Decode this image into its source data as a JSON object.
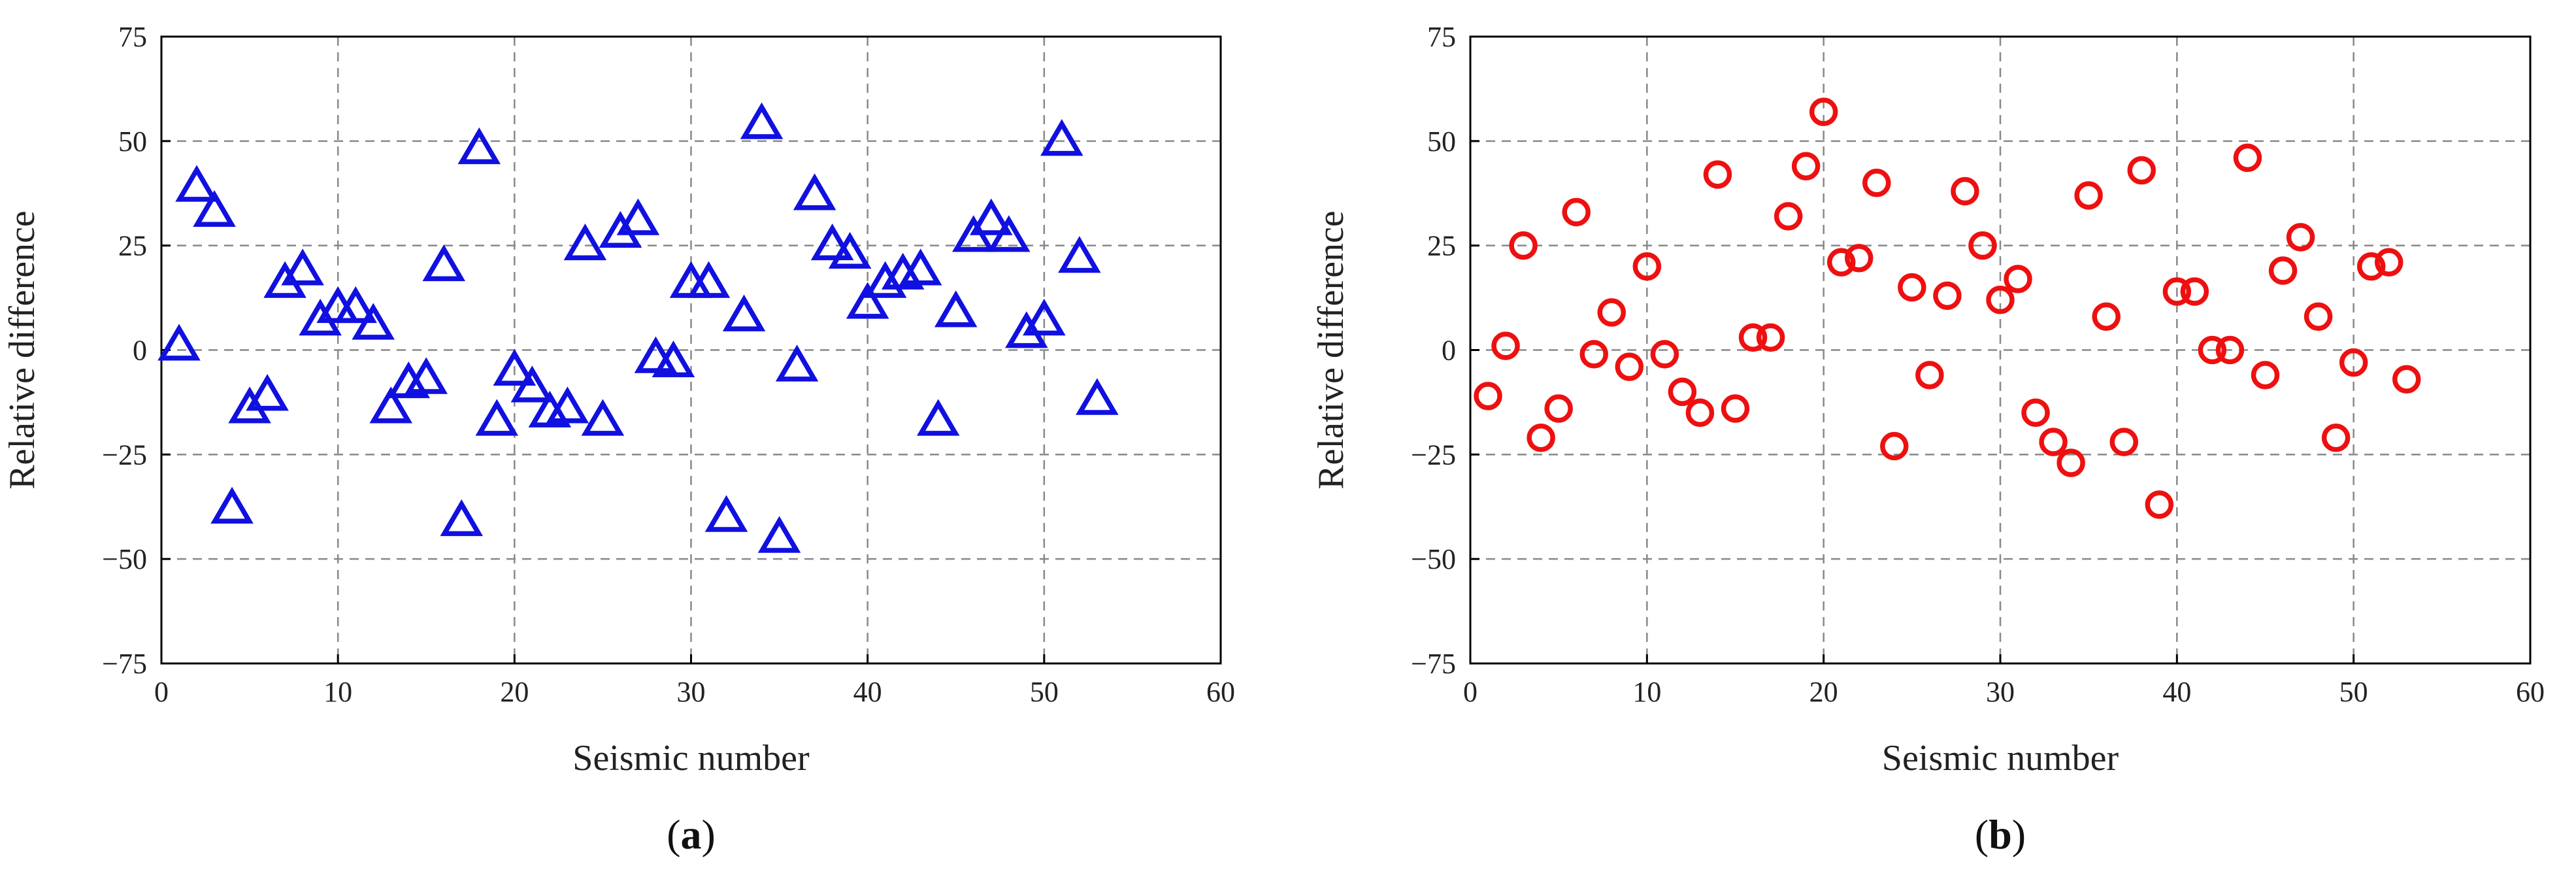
{
  "chart_data": [
    {
      "type": "scatter",
      "panel_label": "a",
      "xlabel": "Seismic number",
      "ylabel": "Relative difference",
      "xlim": [
        0,
        60
      ],
      "ylim": [
        -75,
        75
      ],
      "xticks": [
        0,
        10,
        20,
        30,
        40,
        50,
        60
      ],
      "yticks": [
        75,
        50,
        25,
        0,
        -25,
        -50,
        -75
      ],
      "grid": true,
      "marker": "triangle",
      "color": "#1010e0",
      "series": [
        {
          "x": [
            1,
            2,
            3,
            4,
            5,
            6,
            7,
            8,
            9,
            10,
            11,
            12,
            13,
            14,
            15,
            16,
            17,
            18,
            19,
            20,
            21,
            22,
            23,
            24,
            25,
            26,
            27,
            28,
            29,
            30,
            31,
            32,
            33,
            34,
            35,
            36,
            37,
            38,
            39,
            40,
            41,
            42,
            43,
            44,
            45,
            46,
            47,
            48,
            49,
            50,
            51,
            52,
            53
          ],
          "y": [
            1,
            39,
            33,
            -38,
            -14,
            -11,
            16,
            19,
            7,
            10,
            10,
            6,
            -14,
            -8,
            -7,
            20,
            -41,
            48,
            -17,
            -5,
            -9,
            -15,
            -14,
            25,
            -17,
            28,
            31,
            -2,
            -3,
            16,
            16,
            -40,
            8,
            54,
            -45,
            -4,
            37,
            25,
            23,
            11,
            16,
            18,
            19,
            -17,
            9,
            27,
            31,
            27,
            4,
            7,
            50,
            22,
            -12
          ]
        }
      ]
    },
    {
      "type": "scatter",
      "panel_label": "b",
      "xlabel": "Seismic number",
      "ylabel": "Relative difference",
      "xlim": [
        0,
        60
      ],
      "ylim": [
        -75,
        75
      ],
      "xticks": [
        0,
        10,
        20,
        30,
        40,
        50,
        60
      ],
      "yticks": [
        75,
        50,
        25,
        0,
        -25,
        -50,
        -75
      ],
      "grid": true,
      "marker": "circle",
      "color": "#ee1010",
      "series": [
        {
          "x": [
            1,
            2,
            3,
            4,
            5,
            6,
            7,
            8,
            9,
            10,
            11,
            12,
            13,
            14,
            15,
            16,
            17,
            18,
            19,
            20,
            21,
            22,
            23,
            24,
            25,
            26,
            27,
            28,
            29,
            30,
            31,
            32,
            33,
            34,
            35,
            36,
            37,
            38,
            39,
            40,
            41,
            42,
            43,
            44,
            45,
            46,
            47,
            48,
            49,
            50,
            51,
            52,
            53
          ],
          "y": [
            -11,
            1,
            25,
            -21,
            -14,
            33,
            -1,
            9,
            -4,
            20,
            -1,
            -10,
            -15,
            42,
            -14,
            3,
            3,
            32,
            44,
            57,
            21,
            22,
            40,
            -23,
            15,
            -6,
            13,
            38,
            25,
            12,
            17,
            -15,
            -22,
            -27,
            37,
            8,
            -22,
            43,
            -37,
            14,
            14,
            0,
            0,
            46,
            -6,
            19,
            27,
            8,
            -21,
            -3,
            20,
            21,
            -7
          ]
        }
      ]
    }
  ]
}
